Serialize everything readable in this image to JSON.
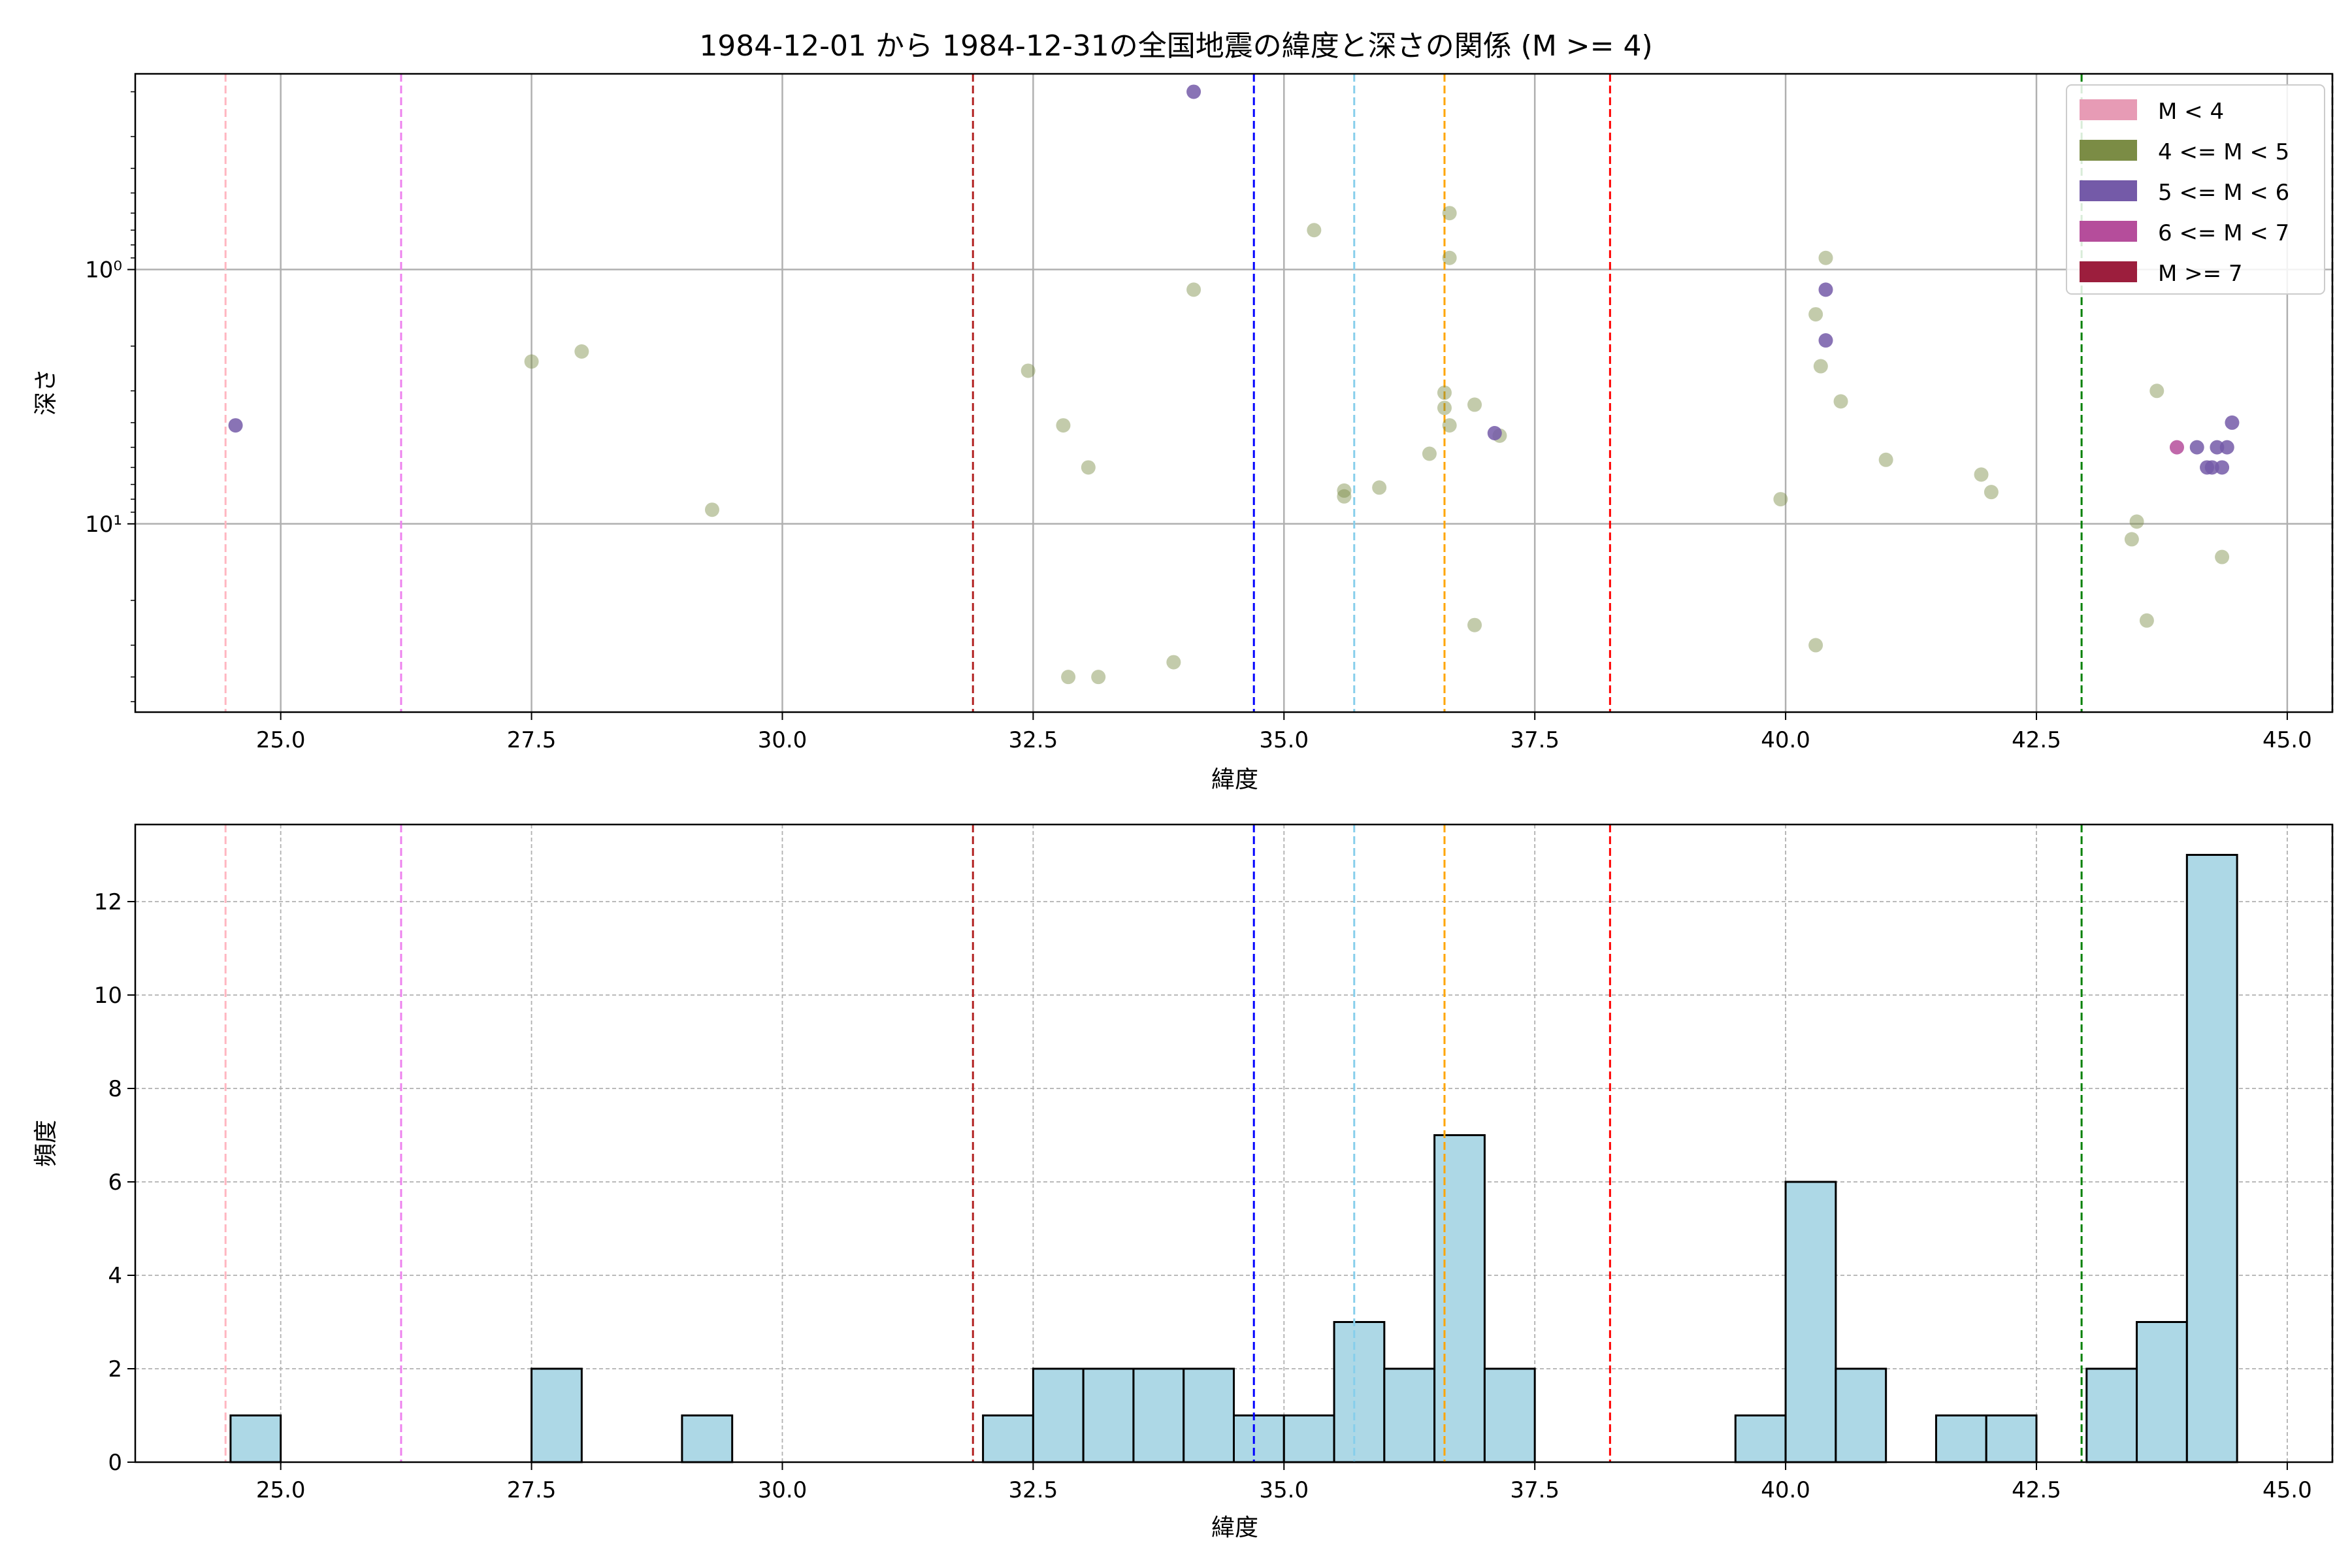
{
  "title": "1984-12-01 から 1984-12-31の全国地震の緯度と深さの関係 (M >= 4)",
  "colors": {
    "legend": [
      "#e79bb5",
      "#7b8c45",
      "#745aa8",
      "#b54d9b",
      "#9c1e3d"
    ],
    "point_m45": "#7b8c45",
    "point_m56": "#745aa8",
    "point_m67": "#b54d9b",
    "hist_fill": "#add8e6",
    "vlines": [
      "#ffb6c1",
      "#ee82ee",
      "#b22222",
      "#0000ff",
      "#87ceeb",
      "#ffa500",
      "#ff0000",
      "#008000",
      "#808080"
    ]
  },
  "chart_data": [
    {
      "type": "scatter",
      "xlabel": "緯度",
      "ylabel": "深さ",
      "xlim": [
        23.55,
        45.45
      ],
      "yscale": "log",
      "yinverted": true,
      "ylim": [
        0.17,
        55
      ],
      "xticks": [
        "25.0",
        "27.5",
        "30.0",
        "32.5",
        "35.0",
        "37.5",
        "40.0",
        "42.5",
        "45.0"
      ],
      "yticks": [
        {
          "v": 1,
          "label": "10⁰"
        },
        {
          "v": 10,
          "label": "10¹"
        }
      ],
      "legend": {
        "position": "top-right",
        "entries": [
          "M < 4",
          "4 <= M < 5",
          "5 <= M < 6",
          "6 <= M < 7",
          "M >= 7"
        ]
      },
      "reference_lines_x": [
        24.45,
        26.2,
        31.9,
        34.7,
        35.7,
        36.6,
        38.25,
        42.95,
        45.45
      ],
      "series": [
        {
          "name": "4 <= M < 5",
          "points": [
            [
              27.5,
              2.3
            ],
            [
              28.0,
              2.1
            ],
            [
              29.3,
              8.8
            ],
            [
              32.45,
              2.5
            ],
            [
              32.8,
              4.1
            ],
            [
              32.85,
              40
            ],
            [
              33.05,
              6.0
            ],
            [
              33.15,
              40
            ],
            [
              33.9,
              35
            ],
            [
              34.1,
              1.2
            ],
            [
              35.3,
              0.7
            ],
            [
              35.6,
              7.4
            ],
            [
              35.6,
              7.8
            ],
            [
              35.95,
              7.2
            ],
            [
              36.45,
              5.3
            ],
            [
              36.6,
              3.5
            ],
            [
              36.6,
              3.05
            ],
            [
              36.65,
              0.6
            ],
            [
              36.65,
              0.9
            ],
            [
              36.65,
              4.1
            ],
            [
              36.9,
              3.4
            ],
            [
              36.9,
              25
            ],
            [
              37.15,
              4.5
            ],
            [
              39.95,
              8.0
            ],
            [
              40.3,
              1.5
            ],
            [
              40.3,
              30
            ],
            [
              40.35,
              2.4
            ],
            [
              40.4,
              0.9
            ],
            [
              40.55,
              3.3
            ],
            [
              41.0,
              5.6
            ],
            [
              41.95,
              6.4
            ],
            [
              42.05,
              7.5
            ],
            [
              43.45,
              11.5
            ],
            [
              43.5,
              9.8
            ],
            [
              43.6,
              24
            ],
            [
              43.7,
              3.0
            ],
            [
              44.35,
              13.5
            ]
          ]
        },
        {
          "name": "5 <= M < 6",
          "points": [
            [
              24.55,
              4.1
            ],
            [
              34.1,
              0.2
            ],
            [
              37.1,
              4.4
            ],
            [
              40.4,
              1.2
            ],
            [
              40.4,
              1.9
            ],
            [
              44.1,
              5.0
            ],
            [
              44.2,
              6.0
            ],
            [
              44.25,
              6.0
            ],
            [
              44.3,
              5.0
            ],
            [
              44.35,
              6.0
            ],
            [
              44.4,
              5.0
            ],
            [
              44.45,
              4.0
            ]
          ]
        },
        {
          "name": "6 <= M < 7",
          "points": [
            [
              43.9,
              5.0
            ]
          ]
        }
      ]
    },
    {
      "type": "bar",
      "xlabel": "緯度",
      "ylabel": "頻度",
      "xlim": [
        23.55,
        45.45
      ],
      "ylim": [
        0,
        13.65
      ],
      "xticks": [
        "25.0",
        "27.5",
        "30.0",
        "32.5",
        "35.0",
        "37.5",
        "40.0",
        "42.5",
        "45.0"
      ],
      "yticks": [
        "0",
        "2",
        "4",
        "6",
        "8",
        "10",
        "12"
      ],
      "reference_lines_x": [
        24.45,
        26.2,
        31.9,
        34.7,
        35.7,
        36.6,
        38.25,
        42.95,
        45.45
      ],
      "bins": [
        [
          24.5,
          25.0,
          1
        ],
        [
          27.5,
          28.0,
          2
        ],
        [
          29.0,
          29.5,
          1
        ],
        [
          32.0,
          32.5,
          1
        ],
        [
          32.5,
          33.0,
          2
        ],
        [
          33.0,
          33.5,
          2
        ],
        [
          33.5,
          34.0,
          2
        ],
        [
          34.0,
          34.5,
          2
        ],
        [
          34.5,
          35.0,
          1
        ],
        [
          35.0,
          35.5,
          1
        ],
        [
          35.5,
          36.0,
          3
        ],
        [
          36.0,
          36.5,
          2
        ],
        [
          36.5,
          37.0,
          7
        ],
        [
          37.0,
          37.5,
          2
        ],
        [
          39.5,
          40.0,
          1
        ],
        [
          40.0,
          40.5,
          6
        ],
        [
          40.5,
          41.0,
          2
        ],
        [
          41.5,
          42.0,
          1
        ],
        [
          42.0,
          42.5,
          1
        ],
        [
          43.0,
          43.5,
          2
        ],
        [
          43.5,
          44.0,
          3
        ],
        [
          44.0,
          44.5,
          13
        ]
      ]
    }
  ]
}
